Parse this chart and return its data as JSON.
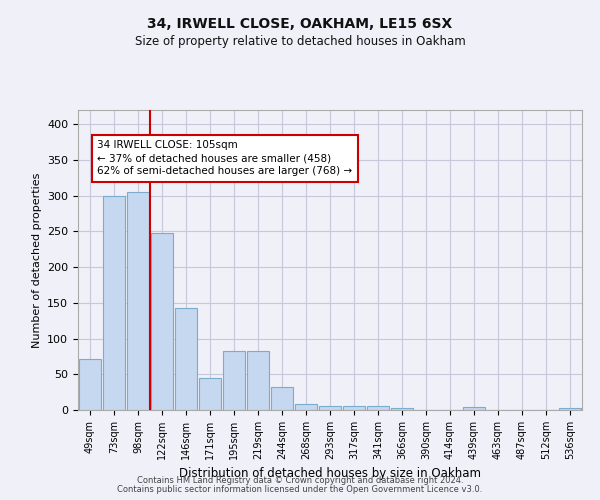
{
  "title1": "34, IRWELL CLOSE, OAKHAM, LE15 6SX",
  "title2": "Size of property relative to detached houses in Oakham",
  "xlabel": "Distribution of detached houses by size in Oakham",
  "ylabel": "Number of detached properties",
  "categories": [
    "49sqm",
    "73sqm",
    "98sqm",
    "122sqm",
    "146sqm",
    "171sqm",
    "195sqm",
    "219sqm",
    "244sqm",
    "268sqm",
    "293sqm",
    "317sqm",
    "341sqm",
    "366sqm",
    "390sqm",
    "414sqm",
    "439sqm",
    "463sqm",
    "487sqm",
    "512sqm",
    "536sqm"
  ],
  "values": [
    72,
    299,
    305,
    248,
    143,
    45,
    83,
    83,
    32,
    9,
    5,
    6,
    6,
    3,
    0,
    0,
    4,
    0,
    0,
    0,
    3
  ],
  "bar_color": "#c5d8ef",
  "bar_edge_color": "#7aacce",
  "vline_x": 2.5,
  "vline_color": "#cc0000",
  "annotation_text": "34 IRWELL CLOSE: 105sqm\n← 37% of detached houses are smaller (458)\n62% of semi-detached houses are larger (768) →",
  "annotation_box_color": "#ffffff",
  "annotation_box_edge": "#cc0000",
  "ylim": [
    0,
    420
  ],
  "yticks": [
    0,
    50,
    100,
    150,
    200,
    250,
    300,
    350,
    400
  ],
  "grid_color": "#c8c8dc",
  "background_color": "#f0f0f8",
  "footer1": "Contains HM Land Registry data © Crown copyright and database right 2024.",
  "footer2": "Contains public sector information licensed under the Open Government Licence v3.0."
}
